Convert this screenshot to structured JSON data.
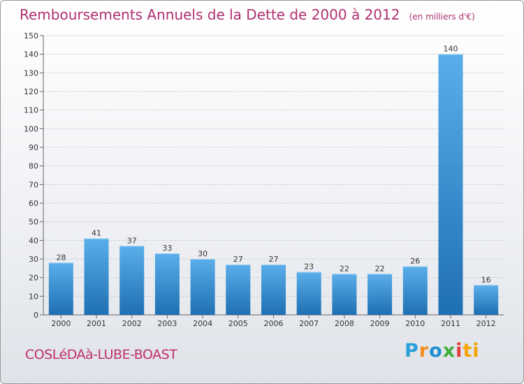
{
  "header": {
    "title": "Remboursements Annuels de la Dette de 2000 à 2012",
    "unit": "(en milliers d'€)"
  },
  "footer": {
    "commune": "COSLéDAà-LUBE-BOAST",
    "logo_letters": [
      "P",
      "r",
      "o",
      "x",
      "i",
      "t",
      "i"
    ]
  },
  "colors": {
    "title": "#b03070",
    "bar_light": "#5aaee9",
    "bar_dark": "#1f6fb3",
    "axis": "#666666",
    "grid": "#c8c8c8"
  },
  "chart_data": {
    "type": "bar",
    "title": "Remboursements Annuels de la Dette de 2000 à 2012",
    "subtitle": "(en milliers d'€)",
    "categories": [
      "2000",
      "2001",
      "2002",
      "2003",
      "2004",
      "2005",
      "2006",
      "2007",
      "2008",
      "2009",
      "2010",
      "2011",
      "2012"
    ],
    "values": [
      28,
      41,
      37,
      33,
      30,
      27,
      27,
      23,
      22,
      22,
      26,
      140,
      16
    ],
    "ylim": [
      0,
      150
    ],
    "yticks": [
      0,
      10,
      20,
      30,
      40,
      50,
      60,
      70,
      80,
      90,
      100,
      110,
      120,
      130,
      140,
      150
    ],
    "grid": true,
    "legend": "none",
    "data_labels": true
  }
}
